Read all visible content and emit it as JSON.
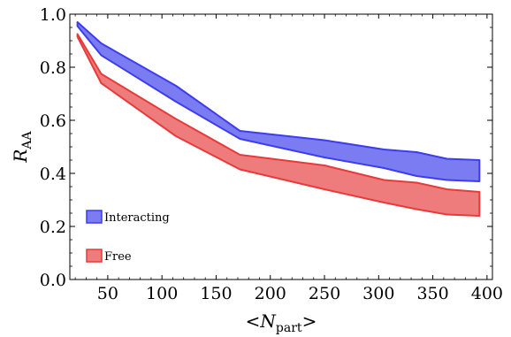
{
  "chart_data": {
    "type": "area",
    "title": "",
    "xlabel": "<N_part>",
    "xlabel_parts": {
      "open": "<",
      "main": "N",
      "sub": "part",
      "close": ">"
    },
    "ylabel": "R_AA",
    "ylabel_parts": {
      "main": "R",
      "sub": "AA"
    },
    "xlim": [
      15,
      405
    ],
    "ylim": [
      0.0,
      1.0
    ],
    "xticks": [
      50,
      100,
      150,
      200,
      250,
      300,
      350,
      400
    ],
    "yticks": [
      0.0,
      0.2,
      0.4,
      0.6,
      0.8,
      1.0
    ],
    "ytick_labels": [
      "0.0",
      "0.2",
      "0.4",
      "0.6",
      "0.8",
      "1.0"
    ],
    "grid": false,
    "legend_position": "bottom-left",
    "series": [
      {
        "name": "Interacting",
        "color": "#3d3df0",
        "fill": "#7b7bf2",
        "x": [
          22,
          44,
          113,
          172,
          250,
          305,
          335,
          363,
          393
        ],
        "upper": [
          0.97,
          0.89,
          0.73,
          0.56,
          0.525,
          0.49,
          0.48,
          0.455,
          0.45
        ],
        "lower": [
          0.955,
          0.845,
          0.67,
          0.53,
          0.46,
          0.42,
          0.39,
          0.375,
          0.37
        ]
      },
      {
        "name": "Free",
        "color": "#e83a3a",
        "fill": "#ee7c7c",
        "x": [
          22,
          44,
          113,
          172,
          250,
          305,
          335,
          363,
          393
        ],
        "upper": [
          0.925,
          0.775,
          0.605,
          0.47,
          0.43,
          0.375,
          0.365,
          0.34,
          0.33
        ],
        "lower": [
          0.915,
          0.74,
          0.54,
          0.415,
          0.34,
          0.29,
          0.265,
          0.245,
          0.24
        ]
      }
    ]
  }
}
